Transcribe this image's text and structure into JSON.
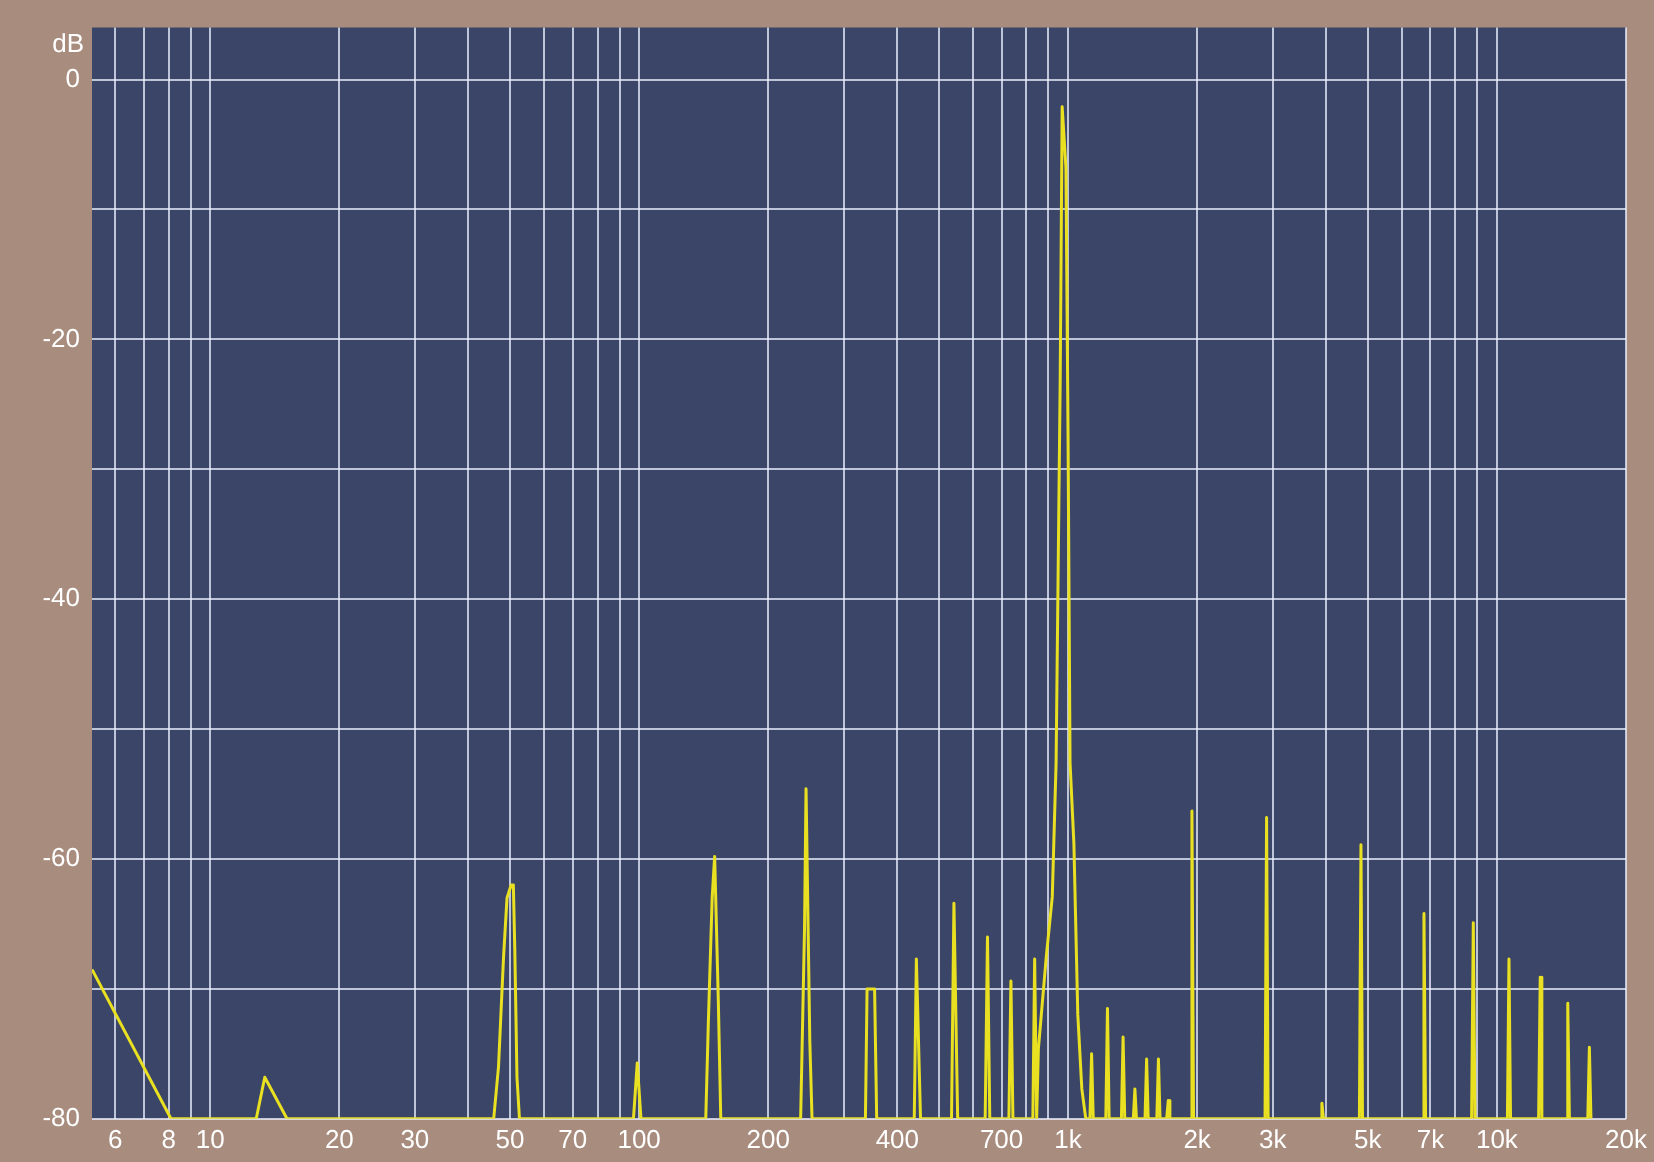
{
  "chart_data": {
    "type": "line",
    "ylabel": "dB",
    "log": "x",
    "grid": true,
    "legend": false,
    "xlim": [
      5.3,
      20000
    ],
    "ylim": [
      -80,
      4
    ],
    "xticks": [
      6,
      {
        "value": 7,
        "label": null
      },
      8,
      {
        "value": 9,
        "label": null
      },
      10,
      20,
      30,
      {
        "value": 40,
        "label": null
      },
      50,
      {
        "value": 60,
        "label": null
      },
      70,
      {
        "value": 80,
        "label": null
      },
      {
        "value": 90,
        "label": null
      },
      100,
      200,
      {
        "value": 300,
        "label": null
      },
      400,
      {
        "value": 500,
        "label": null
      },
      {
        "value": 600,
        "label": null
      },
      700,
      {
        "value": 800,
        "label": null
      },
      {
        "value": 900,
        "label": null
      },
      {
        "value": 1000,
        "label": "1k"
      },
      {
        "value": 2000,
        "label": "2k"
      },
      {
        "value": 3000,
        "label": "3k"
      },
      {
        "value": 4000,
        "label": null
      },
      {
        "value": 5000,
        "label": "5k"
      },
      {
        "value": 6000,
        "label": null
      },
      {
        "value": 7000,
        "label": "7k"
      },
      {
        "value": 8000,
        "label": null
      },
      {
        "value": 9000,
        "label": null
      },
      {
        "value": 10000,
        "label": "10k"
      },
      {
        "value": 20000,
        "label": "20k"
      }
    ],
    "yticks": [
      0,
      {
        "value": -10,
        "label": null
      },
      -20,
      {
        "value": -30,
        "label": null
      },
      -40,
      {
        "value": -50,
        "label": null
      },
      -60,
      {
        "value": -70,
        "label": null
      },
      -80
    ],
    "series": [
      {
        "color": "#e8e020",
        "x": [
          5.3,
          8.1,
          12.8,
          13.4,
          15.1,
          45.8,
          47,
          48.3,
          49.2,
          50.3,
          50.9,
          51.3,
          51.9,
          52.6,
          97,
          99,
          101,
          143,
          145,
          148,
          150,
          153,
          155,
          238,
          243,
          245,
          250,
          253,
          337,
          340,
          354,
          358,
          438,
          443,
          453,
          535,
          542,
          553,
          641,
          649,
          657,
          728,
          736,
          744,
          828,
          836,
          845,
          853,
          890,
          919,
          938,
          959,
          969,
          989,
          1000,
          1011,
          1032,
          1054,
          1077,
          1100,
          1125,
          1135,
          1145,
          1225,
          1236,
          1247,
          1332,
          1344,
          1356,
          1420,
          1432,
          1444,
          1512,
          1525,
          1538,
          1611,
          1625,
          1639,
          1698,
          1713,
          1728,
          1928,
          1945,
          1962,
          2880,
          2904,
          2928,
          3875,
          3908,
          3941,
          4780,
          4820,
          4860,
          6700,
          6760,
          6820,
          8730,
          8810,
          8890,
          10580,
          10670,
          10760,
          12510,
          12620,
          12730,
          14500,
          14630,
          14760,
          16290,
          16430,
          16570
        ],
        "values": [
          -68.5,
          -80,
          -80,
          -76.8,
          -80,
          -80,
          -76,
          -67.5,
          -63,
          -62,
          -62,
          -67,
          -76.8,
          -80,
          -80,
          -75.7,
          -80,
          -80,
          -72.6,
          -63,
          -59.8,
          -71,
          -80,
          -80,
          -65.4,
          -54.6,
          -74,
          -80,
          -80,
          -70,
          -70,
          -80,
          -80,
          -67.7,
          -80,
          -80,
          -63.4,
          -80,
          -80,
          -66,
          -80,
          -80,
          -69.4,
          -80,
          -80,
          -67.7,
          -80,
          -74.6,
          -67.5,
          -62.9,
          -52.6,
          -23,
          -2.1,
          -6.8,
          -27,
          -52.6,
          -58.8,
          -72,
          -77.7,
          -80,
          -80,
          -75,
          -80,
          -80,
          -71.5,
          -80,
          -80,
          -73.7,
          -80,
          -80,
          -77.7,
          -80,
          -80,
          -75.4,
          -80,
          -80,
          -75.4,
          -80,
          -80,
          -78.6,
          -80,
          -80,
          -56.3,
          -80,
          -80,
          -56.8,
          -80,
          -80,
          -78.8,
          -80,
          -80,
          -58.9,
          -80,
          -80,
          -64.2,
          -80,
          -80,
          -64.9,
          -80,
          -80,
          -67.7,
          -80,
          -80,
          -69.1,
          -80,
          -80,
          -71.1,
          -80,
          -80,
          -74.5,
          -80
        ]
      }
    ]
  }
}
